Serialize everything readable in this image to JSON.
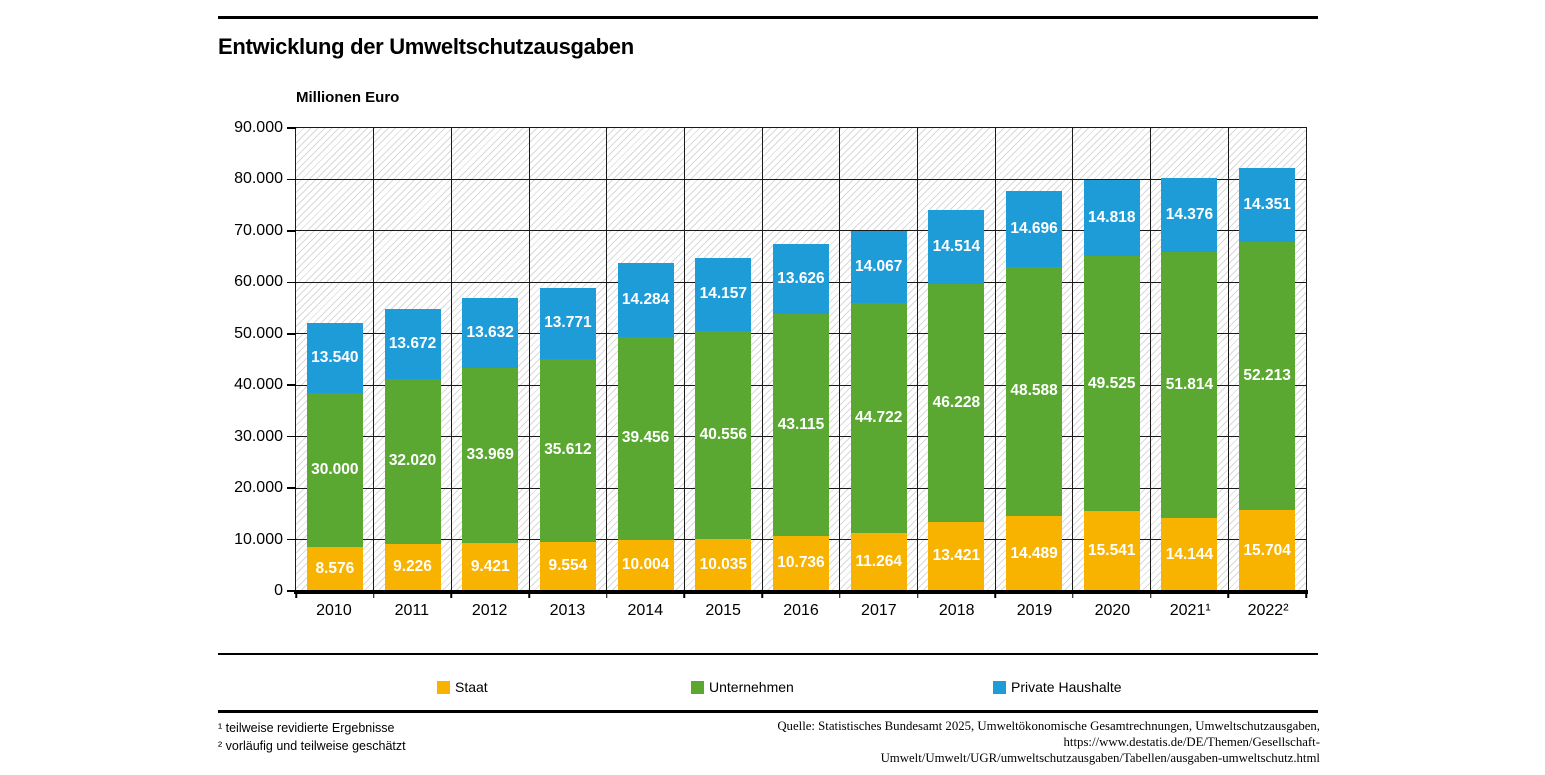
{
  "chart_data": {
    "type": "bar",
    "stacked": true,
    "title": "Entwicklung der Umweltschutzausgaben",
    "unit_label": "Millionen Euro",
    "ylim": [
      0,
      90000
    ],
    "ytick_step": 10000,
    "grid": true,
    "legend_position": "bottom",
    "categories": [
      "2010",
      "2011",
      "2012",
      "2013",
      "2014",
      "2015",
      "2016",
      "2017",
      "2018",
      "2019",
      "2020",
      "2021¹",
      "2022²"
    ],
    "series": [
      {
        "name": "Staat",
        "color": "#F8B200",
        "values": [
          8576,
          9226,
          9421,
          9554,
          10004,
          10035,
          10736,
          11264,
          13421,
          14489,
          15541,
          14144,
          15704
        ]
      },
      {
        "name": "Unternehmen",
        "color": "#5AA831",
        "values": [
          30000,
          32020,
          33969,
          35612,
          39456,
          40556,
          43115,
          44722,
          46228,
          48588,
          49525,
          51814,
          52213
        ]
      },
      {
        "name": "Private Haushalte",
        "color": "#1E9CD8",
        "values": [
          13540,
          13672,
          13632,
          13771,
          14284,
          14157,
          13626,
          14067,
          14514,
          14696,
          14818,
          14376,
          14351
        ]
      }
    ]
  },
  "footnotes": [
    "¹ teilweise revidierte Ergebnisse",
    "² vorläufig und teilweise geschätzt"
  ],
  "source": {
    "lines": [
      "Quelle: Statistisches Bundesamt 2025, Umweltökonomische Gesamtrechnungen, Umweltschutzausgaben,",
      "https://www.destatis.de/DE/Themen/Gesellschaft-",
      "Umwelt/Umwelt/UGR/umweltschutzausgaben/Tabellen/ausgaben-umweltschutz.html"
    ]
  }
}
